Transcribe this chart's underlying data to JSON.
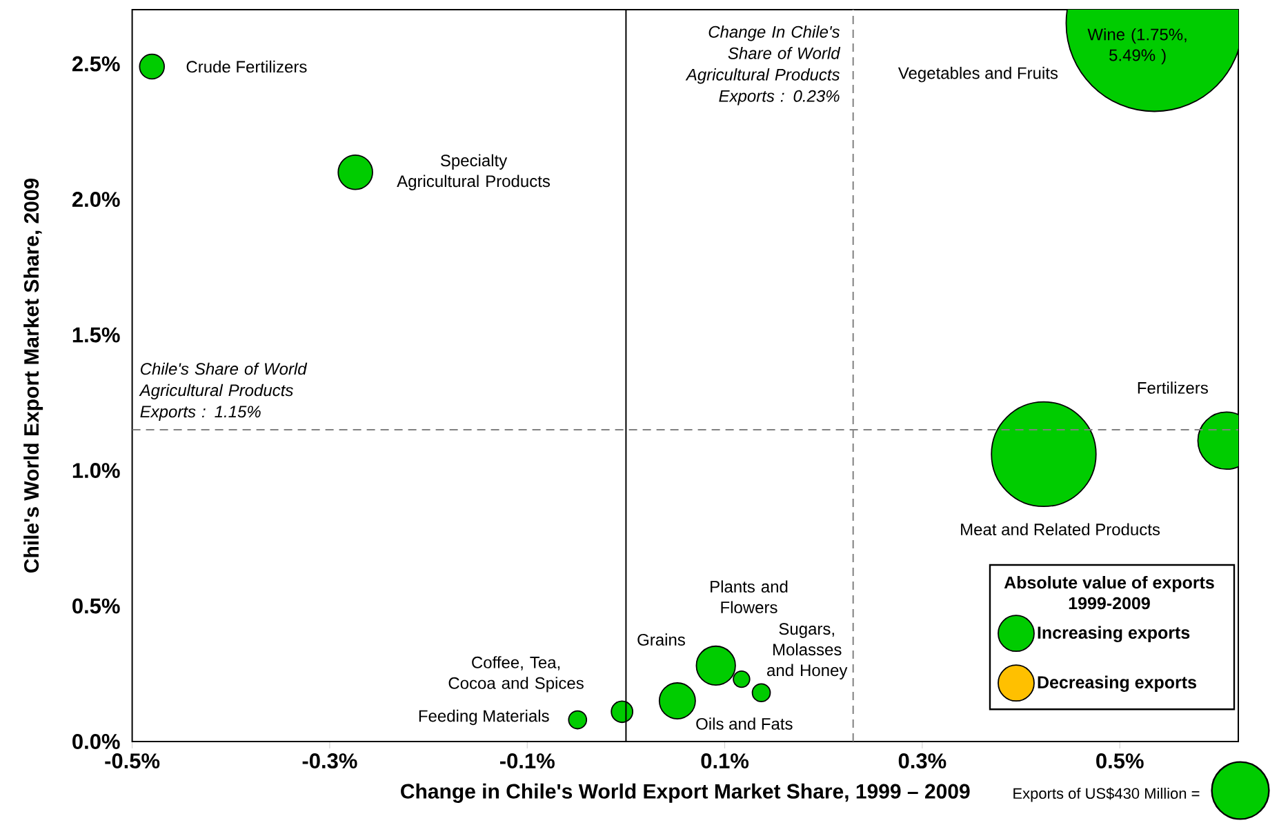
{
  "chart_data": {
    "type": "bubble",
    "xlabel": "Change in Chile's World Export Market Share, 1999 – 2009",
    "ylabel": "Chile's  World Export Market Share, 2009",
    "xlim": [
      -0.5,
      0.62
    ],
    "ylim": [
      0,
      2.7
    ],
    "xticks": [
      {
        "value": -0.5,
        "label": "-0.5%"
      },
      {
        "value": -0.3,
        "label": "-0.3%"
      },
      {
        "value": -0.1,
        "label": "-0.1%"
      },
      {
        "value": 0.1,
        "label": "0.1%"
      },
      {
        "value": 0.3,
        "label": "0.3%"
      },
      {
        "value": 0.5,
        "label": "0.5%"
      }
    ],
    "yticks": [
      {
        "value": 0,
        "label": "0.0%"
      },
      {
        "value": 0.5,
        "label": "0.5%"
      },
      {
        "value": 1.0,
        "label": "1.0%"
      },
      {
        "value": 1.5,
        "label": "1.5%"
      },
      {
        "value": 2.0,
        "label": "2.0%"
      },
      {
        "value": 2.5,
        "label": "2.5%"
      }
    ],
    "series": [
      {
        "name": "Increasing exports",
        "color": "#00cc00",
        "x": [
          -0.48,
          -0.274,
          0.535,
          0.423,
          0.608,
          0.091,
          0.117,
          0.137,
          0.052,
          -0.004,
          -0.049
        ],
        "values": [
          2.49,
          2.1,
          2.65,
          1.06,
          1.11,
          0.28,
          0.23,
          0.18,
          0.15,
          0.11,
          0.08
        ],
        "sizes": [
          80,
          155,
          4100,
          1440,
          430,
          200,
          35,
          42,
          170,
          60,
          42
        ]
      },
      {
        "name": "Decreasing exports",
        "color": "#ffc000"
      }
    ],
    "legend": "bottom right",
    "legend_title": "Absolute value of exports 1999-2009",
    "size_legend": [
      {
        "value": 430,
        "label": "Exports of US$430 Million ="
      }
    ],
    "ref_lines": [
      {
        "axis": "x",
        "value": 0,
        "color": "#000000",
        "line_style": "solid"
      },
      {
        "axis": "x",
        "value": 0.23,
        "color": "#808080",
        "line_style": "dashed",
        "label": "Change In Chile's Share of World Agricultural Products Exports :  0.23%"
      },
      {
        "axis": "y",
        "value": 1.15,
        "color": "#808080",
        "line_style": "dashed",
        "label": "Chile's Share of World Agricultural Products Exports : 1.15%"
      }
    ],
    "annotations": [
      "Crude Fertilizers",
      "Specialty Agricultural Products",
      "Vegetables and Fruits",
      "Meat and Related Products",
      "Fertilizers",
      "Grains",
      "Plants and Flowers",
      "Sugars, Molasses and Honey",
      "Oils and Fats",
      "Coffee, Tea, Cocoa and Spices",
      "Feeding Materials",
      "Wine (1.75%, 5.49% )"
    ]
  }
}
